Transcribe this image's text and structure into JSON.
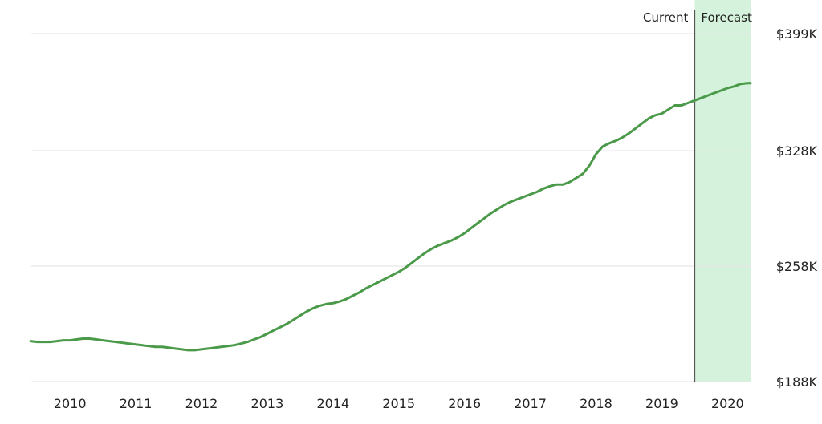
{
  "chart_data": {
    "type": "line",
    "title": "",
    "xlabel": "",
    "ylabel": "",
    "x_range": [
      2009.4,
      2020.35
    ],
    "ylim": [
      188,
      399
    ],
    "y_ticks": [
      "$399K",
      "$328K",
      "$258K",
      "$188K"
    ],
    "y_tick_values": [
      399,
      328,
      258,
      188
    ],
    "x_ticks": [
      "2010",
      "2011",
      "2012",
      "2013",
      "2014",
      "2015",
      "2016",
      "2017",
      "2018",
      "2019",
      "2020"
    ],
    "x_tick_values": [
      2010,
      2011,
      2012,
      2013,
      2014,
      2015,
      2016,
      2017,
      2018,
      2019,
      2020
    ],
    "current_label": "Current",
    "forecast_label": "Forecast",
    "forecast_start": 2019.5,
    "grid": true,
    "colors": {
      "line": "#4a9a4a",
      "forecast_fill": "#d5f2dc",
      "grid": "#e6e6e6",
      "divider": "#555555"
    },
    "series": [
      {
        "values": [
          [
            2009.4,
            212.5
          ],
          [
            2009.5,
            212
          ],
          [
            2009.6,
            212
          ],
          [
            2009.7,
            212
          ],
          [
            2009.8,
            212.5
          ],
          [
            2009.9,
            213
          ],
          [
            2010.0,
            213
          ],
          [
            2010.1,
            213.5
          ],
          [
            2010.2,
            214
          ],
          [
            2010.3,
            214
          ],
          [
            2010.4,
            213.5
          ],
          [
            2010.5,
            213
          ],
          [
            2010.6,
            212.5
          ],
          [
            2010.7,
            212
          ],
          [
            2010.8,
            211.5
          ],
          [
            2010.9,
            211
          ],
          [
            2011.0,
            210.5
          ],
          [
            2011.1,
            210
          ],
          [
            2011.2,
            209.5
          ],
          [
            2011.3,
            209
          ],
          [
            2011.4,
            209
          ],
          [
            2011.5,
            208.5
          ],
          [
            2011.6,
            208
          ],
          [
            2011.7,
            207.5
          ],
          [
            2011.8,
            207
          ],
          [
            2011.9,
            207
          ],
          [
            2012.0,
            207.5
          ],
          [
            2012.1,
            208
          ],
          [
            2012.2,
            208.5
          ],
          [
            2012.3,
            209
          ],
          [
            2012.4,
            209.5
          ],
          [
            2012.5,
            210
          ],
          [
            2012.6,
            211
          ],
          [
            2012.7,
            212
          ],
          [
            2012.8,
            213.5
          ],
          [
            2012.9,
            215
          ],
          [
            2013.0,
            217
          ],
          [
            2013.1,
            219
          ],
          [
            2013.2,
            221
          ],
          [
            2013.3,
            223
          ],
          [
            2013.4,
            225.5
          ],
          [
            2013.5,
            228
          ],
          [
            2013.6,
            230.5
          ],
          [
            2013.7,
            232.5
          ],
          [
            2013.8,
            234
          ],
          [
            2013.9,
            235
          ],
          [
            2014.0,
            235.5
          ],
          [
            2014.1,
            236.5
          ],
          [
            2014.2,
            238
          ],
          [
            2014.3,
            240
          ],
          [
            2014.4,
            242
          ],
          [
            2014.5,
            244.5
          ],
          [
            2014.6,
            246.5
          ],
          [
            2014.7,
            248.5
          ],
          [
            2014.8,
            250.5
          ],
          [
            2014.9,
            252.5
          ],
          [
            2015.0,
            254.5
          ],
          [
            2015.1,
            257
          ],
          [
            2015.2,
            260
          ],
          [
            2015.3,
            263
          ],
          [
            2015.4,
            266
          ],
          [
            2015.5,
            268.5
          ],
          [
            2015.6,
            270.5
          ],
          [
            2015.7,
            272
          ],
          [
            2015.8,
            273.5
          ],
          [
            2015.9,
            275.5
          ],
          [
            2016.0,
            278
          ],
          [
            2016.1,
            281
          ],
          [
            2016.2,
            284
          ],
          [
            2016.3,
            287
          ],
          [
            2016.4,
            290
          ],
          [
            2016.5,
            292.5
          ],
          [
            2016.6,
            295
          ],
          [
            2016.7,
            297
          ],
          [
            2016.8,
            298.5
          ],
          [
            2016.9,
            300
          ],
          [
            2017.0,
            301.5
          ],
          [
            2017.1,
            303
          ],
          [
            2017.2,
            305
          ],
          [
            2017.3,
            306.5
          ],
          [
            2017.4,
            307.5
          ],
          [
            2017.5,
            307.5
          ],
          [
            2017.6,
            309
          ],
          [
            2017.7,
            311.5
          ],
          [
            2017.8,
            314
          ],
          [
            2017.9,
            319
          ],
          [
            2018.0,
            326
          ],
          [
            2018.1,
            330.5
          ],
          [
            2018.2,
            332.5
          ],
          [
            2018.3,
            334
          ],
          [
            2018.4,
            336
          ],
          [
            2018.5,
            338.5
          ],
          [
            2018.6,
            341.5
          ],
          [
            2018.7,
            344.5
          ],
          [
            2018.8,
            347.5
          ],
          [
            2018.9,
            349.5
          ],
          [
            2019.0,
            350.5
          ],
          [
            2019.1,
            353
          ],
          [
            2019.2,
            355.5
          ],
          [
            2019.3,
            355.5
          ],
          [
            2019.4,
            357
          ],
          [
            2019.5,
            358.5
          ],
          [
            2019.6,
            360
          ],
          [
            2019.7,
            361.5
          ],
          [
            2019.8,
            363
          ],
          [
            2019.9,
            364.5
          ],
          [
            2020.0,
            366
          ],
          [
            2020.1,
            367
          ],
          [
            2020.2,
            368.5
          ],
          [
            2020.3,
            369
          ],
          [
            2020.35,
            369
          ]
        ]
      }
    ]
  }
}
